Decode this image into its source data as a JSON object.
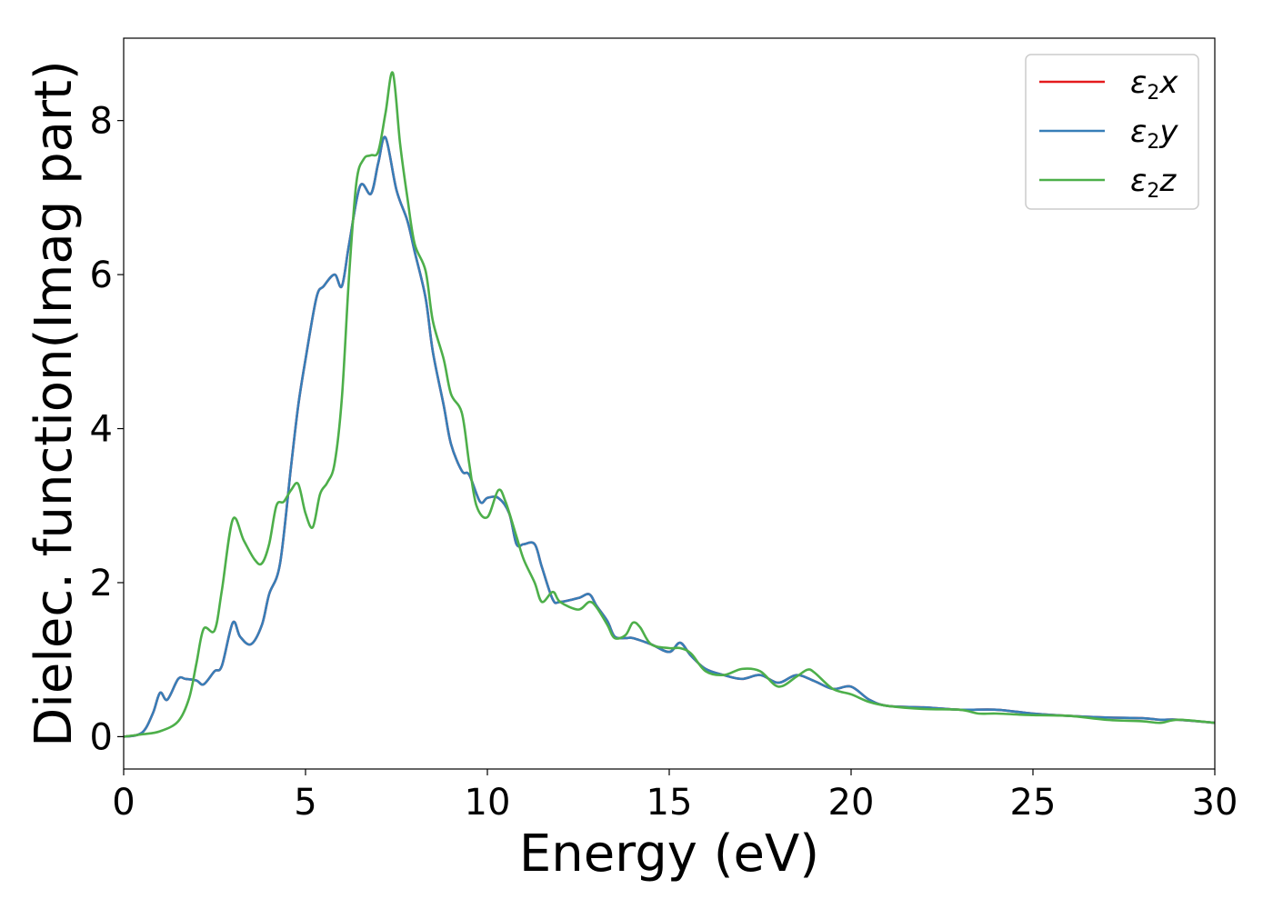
{
  "chart_data": {
    "type": "line",
    "xlabel": "Energy (eV)",
    "ylabel": "Dielec. function(Imag part)",
    "xlim": [
      0,
      30
    ],
    "ylim": [
      -0.42,
      9.07
    ],
    "xticks": [
      0,
      5,
      10,
      15,
      20,
      25,
      30
    ],
    "yticks": [
      0,
      2,
      4,
      6,
      8
    ],
    "grid": false,
    "legend_position": "top-right",
    "series": [
      {
        "name": "ε2x",
        "color": "#e41a1c",
        "x": [
          0,
          0.5,
          0.8,
          1.0,
          1.2,
          1.5,
          1.7,
          2.0,
          2.2,
          2.5,
          2.7,
          3.0,
          3.2,
          3.5,
          3.8,
          4.0,
          4.3,
          4.6,
          4.8,
          5.0,
          5.3,
          5.5,
          5.8,
          6.0,
          6.2,
          6.5,
          6.8,
          7.0,
          7.2,
          7.5,
          7.8,
          8.0,
          8.3,
          8.5,
          8.8,
          9.0,
          9.3,
          9.5,
          9.8,
          10.0,
          10.3,
          10.6,
          10.8,
          11.0,
          11.3,
          11.5,
          11.8,
          12.0,
          12.5,
          12.8,
          13.0,
          13.3,
          13.5,
          13.8,
          14.0,
          14.5,
          15.0,
          15.3,
          15.6,
          16.0,
          16.5,
          17.0,
          17.5,
          18.0,
          18.5,
          19.0,
          19.5,
          20.0,
          20.5,
          21.0,
          22.0,
          23.0,
          24.0,
          25.0,
          26.0,
          27.0,
          28.0,
          28.5,
          29.0,
          30.0
        ],
        "y": [
          0.0,
          0.05,
          0.3,
          0.57,
          0.48,
          0.75,
          0.75,
          0.73,
          0.68,
          0.85,
          0.92,
          1.48,
          1.3,
          1.2,
          1.45,
          1.85,
          2.25,
          3.5,
          4.3,
          4.9,
          5.7,
          5.85,
          6.0,
          5.85,
          6.4,
          7.15,
          7.05,
          7.45,
          7.78,
          7.1,
          6.7,
          6.3,
          5.7,
          5.0,
          4.3,
          3.8,
          3.45,
          3.4,
          3.05,
          3.1,
          3.1,
          2.9,
          2.5,
          2.5,
          2.5,
          2.2,
          1.78,
          1.75,
          1.8,
          1.85,
          1.7,
          1.5,
          1.3,
          1.28,
          1.28,
          1.2,
          1.1,
          1.22,
          1.05,
          0.88,
          0.8,
          0.75,
          0.8,
          0.7,
          0.8,
          0.72,
          0.62,
          0.65,
          0.48,
          0.4,
          0.38,
          0.35,
          0.35,
          0.3,
          0.27,
          0.25,
          0.24,
          0.22,
          0.22,
          0.18
        ]
      },
      {
        "name": "ε2y",
        "color": "#377eb8",
        "x": [
          0,
          0.5,
          0.8,
          1.0,
          1.2,
          1.5,
          1.7,
          2.0,
          2.2,
          2.5,
          2.7,
          3.0,
          3.2,
          3.5,
          3.8,
          4.0,
          4.3,
          4.6,
          4.8,
          5.0,
          5.3,
          5.5,
          5.8,
          6.0,
          6.2,
          6.5,
          6.8,
          7.0,
          7.2,
          7.5,
          7.8,
          8.0,
          8.3,
          8.5,
          8.8,
          9.0,
          9.3,
          9.5,
          9.8,
          10.0,
          10.3,
          10.6,
          10.8,
          11.0,
          11.3,
          11.5,
          11.8,
          12.0,
          12.5,
          12.8,
          13.0,
          13.3,
          13.5,
          13.8,
          14.0,
          14.5,
          15.0,
          15.3,
          15.6,
          16.0,
          16.5,
          17.0,
          17.5,
          18.0,
          18.5,
          19.0,
          19.5,
          20.0,
          20.5,
          21.0,
          22.0,
          23.0,
          24.0,
          25.0,
          26.0,
          27.0,
          28.0,
          28.5,
          29.0,
          30.0
        ],
        "y": [
          0.0,
          0.05,
          0.3,
          0.57,
          0.48,
          0.75,
          0.75,
          0.73,
          0.68,
          0.85,
          0.92,
          1.48,
          1.3,
          1.2,
          1.45,
          1.85,
          2.25,
          3.5,
          4.3,
          4.9,
          5.7,
          5.85,
          6.0,
          5.85,
          6.4,
          7.15,
          7.05,
          7.45,
          7.78,
          7.1,
          6.7,
          6.3,
          5.7,
          5.0,
          4.3,
          3.8,
          3.45,
          3.4,
          3.05,
          3.1,
          3.1,
          2.9,
          2.5,
          2.5,
          2.5,
          2.2,
          1.78,
          1.75,
          1.8,
          1.85,
          1.7,
          1.5,
          1.3,
          1.28,
          1.28,
          1.2,
          1.1,
          1.22,
          1.05,
          0.88,
          0.8,
          0.75,
          0.8,
          0.7,
          0.8,
          0.72,
          0.62,
          0.65,
          0.48,
          0.4,
          0.38,
          0.35,
          0.35,
          0.3,
          0.27,
          0.25,
          0.24,
          0.22,
          0.22,
          0.18
        ]
      },
      {
        "name": "ε2z",
        "color": "#4daf4a",
        "x": [
          0,
          0.5,
          1.0,
          1.5,
          1.8,
          2.0,
          2.2,
          2.5,
          2.7,
          3.0,
          3.3,
          3.6,
          3.8,
          4.0,
          4.2,
          4.4,
          4.6,
          4.8,
          5.0,
          5.2,
          5.4,
          5.6,
          5.8,
          6.0,
          6.2,
          6.4,
          6.6,
          6.8,
          7.0,
          7.2,
          7.4,
          7.6,
          7.8,
          8.0,
          8.3,
          8.5,
          8.8,
          9.0,
          9.3,
          9.5,
          9.7,
          10.0,
          10.3,
          10.5,
          10.8,
          11.0,
          11.3,
          11.5,
          11.8,
          12.0,
          12.5,
          12.8,
          13.0,
          13.3,
          13.5,
          13.8,
          14.0,
          14.2,
          14.5,
          15.0,
          15.3,
          15.6,
          16.0,
          16.5,
          17.0,
          17.5,
          18.0,
          18.5,
          18.8,
          19.0,
          19.5,
          20.0,
          20.5,
          21.0,
          22.0,
          23.0,
          23.5,
          24.0,
          25.0,
          26.0,
          27.0,
          28.0,
          28.5,
          29.0,
          30.0
        ],
        "y": [
          0.0,
          0.03,
          0.07,
          0.2,
          0.5,
          0.95,
          1.4,
          1.38,
          1.9,
          2.82,
          2.55,
          2.3,
          2.25,
          2.5,
          3.0,
          3.05,
          3.2,
          3.28,
          2.9,
          2.72,
          3.15,
          3.3,
          3.55,
          4.4,
          6.0,
          7.2,
          7.5,
          7.55,
          7.6,
          8.1,
          8.62,
          7.7,
          7.0,
          6.4,
          6.05,
          5.4,
          4.9,
          4.45,
          4.2,
          3.55,
          3.0,
          2.85,
          3.2,
          3.05,
          2.6,
          2.3,
          2.0,
          1.75,
          1.88,
          1.75,
          1.65,
          1.75,
          1.68,
          1.45,
          1.28,
          1.32,
          1.48,
          1.42,
          1.2,
          1.15,
          1.15,
          1.08,
          0.85,
          0.8,
          0.88,
          0.85,
          0.65,
          0.78,
          0.87,
          0.83,
          0.62,
          0.55,
          0.45,
          0.4,
          0.36,
          0.35,
          0.3,
          0.3,
          0.28,
          0.27,
          0.22,
          0.2,
          0.18,
          0.22,
          0.18
        ]
      }
    ]
  }
}
